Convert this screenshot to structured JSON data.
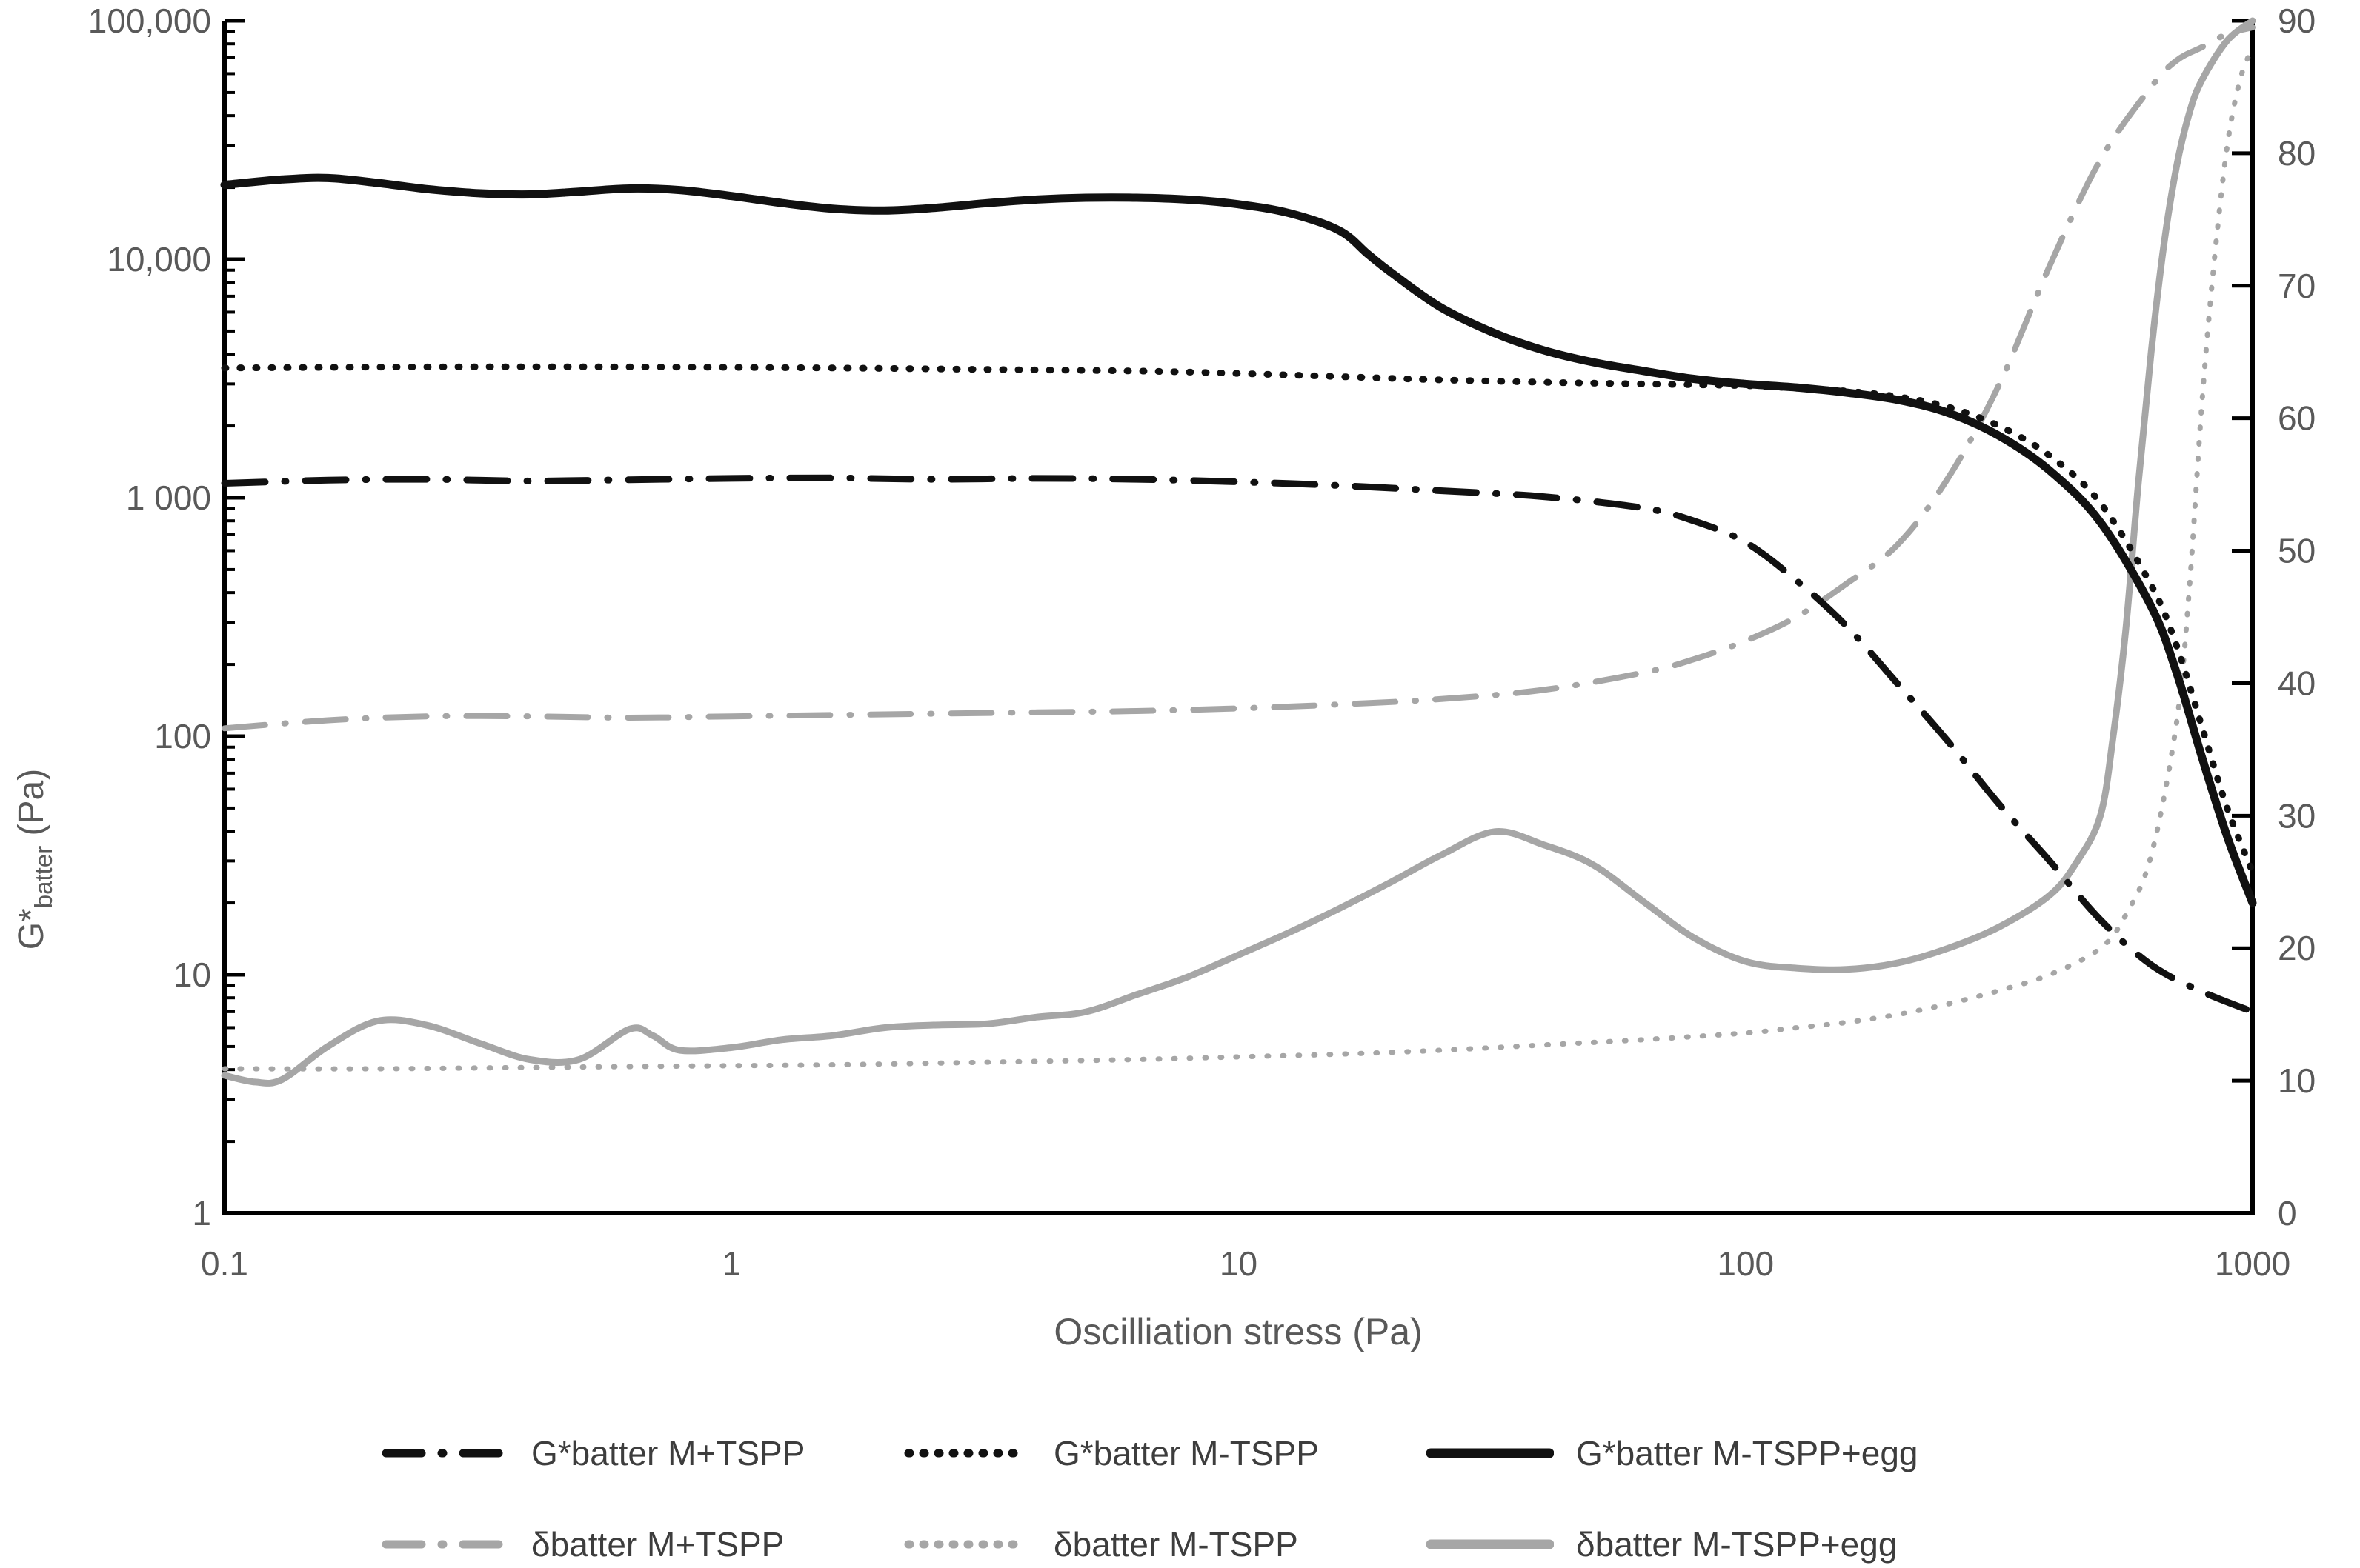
{
  "figure": {
    "background": "#ffffff"
  },
  "chart_data": {
    "type": "line",
    "title": "",
    "xlabel": "Oscilliation stress (Pa)",
    "ylabel_left": {
      "prefix": "G*",
      "sub": "batter",
      "suffix": " (Pa)"
    },
    "x_axis": {
      "scale": "log",
      "min": 0.1,
      "max": 1000,
      "grid": false,
      "tick_values": [
        0.1,
        1,
        10,
        100,
        1000
      ],
      "tick_labels": [
        "0.1",
        "1",
        "10",
        "100",
        "1000"
      ]
    },
    "y_axis_left": {
      "scale": "log",
      "min": 1,
      "max": 100000,
      "tick_values": [
        1,
        10,
        100,
        1000,
        10000,
        100000
      ],
      "tick_labels": [
        "1",
        "10",
        "100",
        "1 000",
        "10,000",
        "100,000"
      ]
    },
    "y_axis_right": {
      "scale": "linear",
      "min": 0,
      "max": 90,
      "step": 10,
      "tick_labels": [
        "0",
        "10",
        "20",
        "30",
        "40",
        "50",
        "60",
        "70",
        "80",
        "90"
      ]
    },
    "legend_position": "bottom",
    "colors": {
      "black": "#111111",
      "gray": "#a6a6a6",
      "tick_text": "#595959",
      "axis_line": "#000000",
      "legend_text": "#3d3d3d"
    },
    "series": [
      {
        "name": "gstar-m-plus-tspp",
        "label": "G*batter M+TSPP",
        "axis": "left",
        "color": "#111111",
        "dash": "dashdot",
        "width": 9,
        "points": [
          [
            0.1,
            1150
          ],
          [
            0.16,
            1185
          ],
          [
            0.25,
            1195
          ],
          [
            0.4,
            1175
          ],
          [
            0.63,
            1190
          ],
          [
            1,
            1205
          ],
          [
            1.58,
            1210
          ],
          [
            2.5,
            1195
          ],
          [
            4,
            1205
          ],
          [
            6.3,
            1195
          ],
          [
            10,
            1165
          ],
          [
            15.8,
            1125
          ],
          [
            25,
            1070
          ],
          [
            40,
            1010
          ],
          [
            63,
            905
          ],
          [
            79,
            800
          ],
          [
            100,
            650
          ],
          [
            126,
            450
          ],
          [
            158,
            290
          ],
          [
            200,
            165
          ],
          [
            251,
            95
          ],
          [
            316,
            52
          ],
          [
            398,
            30
          ],
          [
            501,
            17
          ],
          [
            631,
            11
          ],
          [
            794,
            8.5
          ],
          [
            1000,
            7
          ]
        ]
      },
      {
        "name": "gstar-m-minus-tspp",
        "label": "G*batter M-TSPP",
        "axis": "left",
        "color": "#111111",
        "dash": "dotted",
        "width": 9,
        "points": [
          [
            0.1,
            3500
          ],
          [
            0.2,
            3530
          ],
          [
            0.4,
            3540
          ],
          [
            0.79,
            3530
          ],
          [
            1.58,
            3500
          ],
          [
            3.2,
            3450
          ],
          [
            6.3,
            3400
          ],
          [
            10,
            3320
          ],
          [
            15.8,
            3220
          ],
          [
            25,
            3120
          ],
          [
            40,
            3050
          ],
          [
            63,
            3000
          ],
          [
            100,
            2950
          ],
          [
            126,
            2880
          ],
          [
            158,
            2800
          ],
          [
            200,
            2650
          ],
          [
            251,
            2400
          ],
          [
            316,
            2000
          ],
          [
            398,
            1500
          ],
          [
            501,
            950
          ],
          [
            631,
            430
          ],
          [
            708,
            240
          ],
          [
            794,
            110
          ],
          [
            891,
            50
          ],
          [
            1000,
            27
          ]
        ]
      },
      {
        "name": "gstar-m-minus-tspp-egg",
        "label": "G*batter M-TSPP+egg",
        "axis": "left",
        "color": "#111111",
        "dash": "solid",
        "width": 11,
        "points": [
          [
            0.1,
            20500
          ],
          [
            0.13,
            21600
          ],
          [
            0.16,
            21900
          ],
          [
            0.2,
            20900
          ],
          [
            0.25,
            19700
          ],
          [
            0.32,
            18900
          ],
          [
            0.4,
            18700
          ],
          [
            0.5,
            19200
          ],
          [
            0.63,
            19800
          ],
          [
            0.79,
            19500
          ],
          [
            1,
            18400
          ],
          [
            1.26,
            17200
          ],
          [
            1.58,
            16300
          ],
          [
            2,
            16000
          ],
          [
            2.5,
            16400
          ],
          [
            3.2,
            17200
          ],
          [
            4,
            17800
          ],
          [
            5,
            18100
          ],
          [
            6.3,
            18100
          ],
          [
            7.9,
            17800
          ],
          [
            10,
            17000
          ],
          [
            12.6,
            15600
          ],
          [
            15.8,
            13200
          ],
          [
            18,
            10500
          ],
          [
            20,
            8800
          ],
          [
            25,
            6300
          ],
          [
            32,
            4900
          ],
          [
            40,
            4150
          ],
          [
            50,
            3700
          ],
          [
            63,
            3400
          ],
          [
            79,
            3150
          ],
          [
            100,
            3000
          ],
          [
            126,
            2900
          ],
          [
            158,
            2760
          ],
          [
            200,
            2570
          ],
          [
            251,
            2270
          ],
          [
            316,
            1820
          ],
          [
            398,
            1300
          ],
          [
            501,
            790
          ],
          [
            631,
            350
          ],
          [
            708,
            185
          ],
          [
            794,
            82
          ],
          [
            891,
            38
          ],
          [
            1000,
            20
          ]
        ]
      },
      {
        "name": "delta-m-plus-tspp",
        "label": "δbatter M+TSPP",
        "axis": "right",
        "color": "#a6a6a6",
        "dash": "dashdot",
        "width": 8,
        "points": [
          [
            0.1,
            36.6
          ],
          [
            0.16,
            37.2
          ],
          [
            0.25,
            37.5
          ],
          [
            0.4,
            37.5
          ],
          [
            0.63,
            37.4
          ],
          [
            1,
            37.5
          ],
          [
            1.58,
            37.6
          ],
          [
            2.5,
            37.7
          ],
          [
            4,
            37.8
          ],
          [
            6.3,
            37.9
          ],
          [
            10,
            38.1
          ],
          [
            15.8,
            38.4
          ],
          [
            25,
            38.8
          ],
          [
            40,
            39.5
          ],
          [
            63,
            40.8
          ],
          [
            79,
            41.8
          ],
          [
            100,
            43.2
          ],
          [
            126,
            45
          ],
          [
            158,
            47.5
          ],
          [
            200,
            50.5
          ],
          [
            251,
            55.5
          ],
          [
            316,
            62.5
          ],
          [
            398,
            71.5
          ],
          [
            501,
            79.5
          ],
          [
            631,
            85
          ],
          [
            708,
            87
          ],
          [
            794,
            88
          ],
          [
            891,
            89
          ],
          [
            1000,
            89.5
          ]
        ]
      },
      {
        "name": "delta-m-minus-tspp",
        "label": "δbatter M-TSPP",
        "axis": "right",
        "color": "#a6a6a6",
        "dash": "dotted",
        "width": 7,
        "points": [
          [
            0.1,
            10.9
          ],
          [
            0.2,
            10.9
          ],
          [
            0.4,
            11
          ],
          [
            0.79,
            11.1
          ],
          [
            1.58,
            11.2
          ],
          [
            3.2,
            11.4
          ],
          [
            6.3,
            11.6
          ],
          [
            10,
            11.8
          ],
          [
            15.8,
            12
          ],
          [
            25,
            12.3
          ],
          [
            40,
            12.7
          ],
          [
            63,
            13.1
          ],
          [
            100,
            13.6
          ],
          [
            126,
            14
          ],
          [
            158,
            14.4
          ],
          [
            200,
            15
          ],
          [
            251,
            15.8
          ],
          [
            316,
            16.8
          ],
          [
            398,
            18
          ],
          [
            501,
            20
          ],
          [
            562,
            22.5
          ],
          [
            631,
            27
          ],
          [
            708,
            37
          ],
          [
            750,
            47
          ],
          [
            794,
            61
          ],
          [
            841,
            72
          ],
          [
            891,
            80.5
          ],
          [
            944,
            85.5
          ],
          [
            1000,
            88
          ]
        ]
      },
      {
        "name": "delta-m-minus-tspp-egg",
        "label": "δbatter M-TSPP+egg",
        "axis": "right",
        "color": "#a6a6a6",
        "dash": "solid",
        "width": 9,
        "points": [
          [
            0.1,
            10.4
          ],
          [
            0.115,
            9.9
          ],
          [
            0.13,
            10.1
          ],
          [
            0.16,
            12.6
          ],
          [
            0.2,
            14.5
          ],
          [
            0.25,
            14.2
          ],
          [
            0.32,
            12.8
          ],
          [
            0.4,
            11.6
          ],
          [
            0.5,
            11.6
          ],
          [
            0.63,
            13.9
          ],
          [
            0.7,
            13.4
          ],
          [
            0.79,
            12.3
          ],
          [
            1,
            12.5
          ],
          [
            1.26,
            13.1
          ],
          [
            1.58,
            13.4
          ],
          [
            2,
            14
          ],
          [
            2.5,
            14.2
          ],
          [
            3.2,
            14.3
          ],
          [
            4,
            14.8
          ],
          [
            5,
            15.2
          ],
          [
            6.3,
            16.5
          ],
          [
            7.9,
            17.8
          ],
          [
            10,
            19.5
          ],
          [
            12.6,
            21.2
          ],
          [
            15.8,
            23
          ],
          [
            20,
            25
          ],
          [
            25,
            27
          ],
          [
            32,
            28.8
          ],
          [
            40,
            27.8
          ],
          [
            50,
            26.3
          ],
          [
            63,
            23.5
          ],
          [
            79,
            20.8
          ],
          [
            100,
            19
          ],
          [
            126,
            18.5
          ],
          [
            158,
            18.4
          ],
          [
            200,
            18.9
          ],
          [
            251,
            20
          ],
          [
            316,
            21.6
          ],
          [
            398,
            24
          ],
          [
            450,
            26.5
          ],
          [
            501,
            30
          ],
          [
            531,
            36
          ],
          [
            562,
            44
          ],
          [
            595,
            55
          ],
          [
            631,
            65
          ],
          [
            668,
            73
          ],
          [
            708,
            79
          ],
          [
            750,
            83
          ],
          [
            794,
            85.5
          ],
          [
            891,
            88.5
          ],
          [
            1000,
            90
          ]
        ]
      }
    ]
  },
  "legend": {
    "order": [
      0,
      1,
      2,
      3,
      4,
      5
    ]
  }
}
